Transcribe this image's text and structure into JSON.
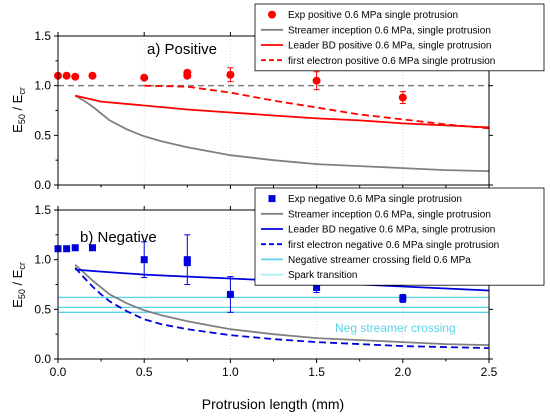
{
  "colors": {
    "red": "#ff0000",
    "blue": "#0000dd",
    "gray": "#808080",
    "cyan": "#5bd2e6",
    "refline": "#808080",
    "grid": "#d9d9d9"
  },
  "chart_data": [
    {
      "type": "line",
      "panel_label": "a) Positive",
      "ylabel_main": "E",
      "ylabel_sub1": "50",
      "ylabel_mid": " / E",
      "ylabel_sub2": "cr",
      "xlim": [
        0,
        2.5
      ],
      "ylim": [
        0,
        1.5
      ],
      "xticks": [
        "0.0",
        "0.5",
        "1.0",
        "1.5",
        "2.0",
        "2.5"
      ],
      "yticks": [
        "0.0",
        "0.5",
        "1.0",
        "1.5"
      ],
      "grid": "vertical-dotted",
      "legend_placement": "top-right",
      "reference_line": {
        "y": 1.0,
        "style": "dash",
        "color": "#808080"
      },
      "series": [
        {
          "name": "Exp positive 0.6 MPa single protrusion",
          "kind": "markers",
          "marker": "circle",
          "color": "#ff0000",
          "points": [
            {
              "x": 0.0,
              "y": 1.1,
              "err": 0.0
            },
            {
              "x": 0.05,
              "y": 1.1,
              "err": 0.0
            },
            {
              "x": 0.1,
              "y": 1.09,
              "err": 0.0
            },
            {
              "x": 0.2,
              "y": 1.1,
              "err": 0.0
            },
            {
              "x": 0.5,
              "y": 1.08,
              "err": 0.0
            },
            {
              "x": 0.75,
              "y": 1.13,
              "err": 0.02
            },
            {
              "x": 0.75,
              "y": 1.1,
              "err": 0.0
            },
            {
              "x": 1.0,
              "y": 1.11,
              "err": 0.07
            },
            {
              "x": 1.5,
              "y": 1.05,
              "err": 0.09
            },
            {
              "x": 2.0,
              "y": 0.88,
              "err": 0.06
            }
          ]
        },
        {
          "name": "Streamer inception 0.6 MPa, single protrusion",
          "kind": "line",
          "dash": "solid",
          "color": "#808080",
          "x": [
            0.1,
            0.15,
            0.2,
            0.25,
            0.3,
            0.4,
            0.5,
            0.6,
            0.75,
            1.0,
            1.25,
            1.5,
            1.75,
            2.0,
            2.25,
            2.5
          ],
          "y": [
            0.9,
            0.85,
            0.79,
            0.72,
            0.65,
            0.56,
            0.49,
            0.44,
            0.38,
            0.3,
            0.25,
            0.21,
            0.19,
            0.17,
            0.15,
            0.14
          ]
        },
        {
          "name": "Leader BD positive 0.6 MPa, single protrusion",
          "kind": "line",
          "dash": "solid",
          "color": "#ff0000",
          "x": [
            0.1,
            0.25,
            0.5,
            0.75,
            1.0,
            1.25,
            1.5,
            1.75,
            2.0,
            2.25,
            2.5
          ],
          "y": [
            0.9,
            0.84,
            0.8,
            0.76,
            0.73,
            0.7,
            0.67,
            0.65,
            0.62,
            0.6,
            0.58
          ]
        },
        {
          "name": "first electron positive 0.6 MPa single protrusion",
          "kind": "line",
          "dash": "dash",
          "color": "#ff0000",
          "x": [
            0.5,
            0.75,
            1.0,
            1.25,
            1.5,
            1.75,
            2.0,
            2.25,
            2.5
          ],
          "y": [
            1.0,
            0.99,
            0.93,
            0.85,
            0.78,
            0.71,
            0.66,
            0.61,
            0.57
          ]
        }
      ]
    },
    {
      "type": "line",
      "panel_label": "b) Negative",
      "ylabel_main": "E",
      "ylabel_sub1": "50",
      "ylabel_mid": " / E",
      "ylabel_sub2": "cr",
      "xlabel": "Protrusion length (mm)",
      "xlim": [
        0,
        2.5
      ],
      "ylim": [
        0,
        1.5
      ],
      "xticks": [
        "0.0",
        "0.5",
        "1.0",
        "1.5",
        "2.0",
        "2.5"
      ],
      "yticks": [
        "0.0",
        "0.5",
        "1.0",
        "1.5"
      ],
      "grid": "vertical-dotted",
      "legend_placement": "top-right",
      "band_label": "Neg streamer crossing",
      "series": [
        {
          "name": "Exp negative 0.6 MPa single protrusion",
          "kind": "markers",
          "marker": "square",
          "color": "#0000dd",
          "points": [
            {
              "x": 0.0,
              "y": 1.11,
              "err": 0.0
            },
            {
              "x": 0.05,
              "y": 1.11,
              "err": 0.0
            },
            {
              "x": 0.1,
              "y": 1.12,
              "err": 0.0
            },
            {
              "x": 0.2,
              "y": 1.12,
              "err": 0.0
            },
            {
              "x": 0.5,
              "y": 1.0,
              "err": 0.18
            },
            {
              "x": 0.75,
              "y": 1.0,
              "err": 0.25
            },
            {
              "x": 0.75,
              "y": 0.97,
              "err": 0.0
            },
            {
              "x": 1.0,
              "y": 0.65,
              "err": 0.18
            },
            {
              "x": 1.5,
              "y": 0.72,
              "err": 0.05
            },
            {
              "x": 2.0,
              "y": 0.61,
              "err": 0.04
            }
          ]
        },
        {
          "name": "Streamer inception 0.6 MPa, single protrusion",
          "kind": "line",
          "dash": "solid",
          "color": "#808080",
          "x": [
            0.1,
            0.15,
            0.2,
            0.25,
            0.3,
            0.4,
            0.5,
            0.6,
            0.75,
            1.0,
            1.25,
            1.5,
            1.75,
            2.0,
            2.25,
            2.5
          ],
          "y": [
            0.95,
            0.87,
            0.79,
            0.72,
            0.65,
            0.56,
            0.49,
            0.44,
            0.38,
            0.3,
            0.25,
            0.21,
            0.19,
            0.17,
            0.15,
            0.14
          ]
        },
        {
          "name": "Leader BD negative 0.6 MPa, single protrusion",
          "kind": "line",
          "dash": "solid",
          "color": "#0000dd",
          "x": [
            0.1,
            0.25,
            0.5,
            0.75,
            1.0,
            1.25,
            1.5,
            1.75,
            2.0,
            2.25,
            2.5
          ],
          "y": [
            0.9,
            0.88,
            0.85,
            0.83,
            0.81,
            0.79,
            0.77,
            0.75,
            0.73,
            0.71,
            0.69
          ]
        },
        {
          "name": "first electron negative  0.6 MPa single protrusion",
          "kind": "line",
          "dash": "dash",
          "color": "#0000dd",
          "x": [
            0.1,
            0.15,
            0.2,
            0.25,
            0.3,
            0.4,
            0.5,
            0.6,
            0.75,
            1.0,
            1.25,
            1.5,
            1.75,
            2.0,
            2.25,
            2.5
          ],
          "y": [
            0.92,
            0.82,
            0.73,
            0.65,
            0.58,
            0.48,
            0.4,
            0.35,
            0.3,
            0.24,
            0.2,
            0.17,
            0.15,
            0.13,
            0.12,
            0.11
          ]
        },
        {
          "name": "Negative streamer crossing field 0.6 MPa",
          "kind": "hlines",
          "color": "#5bd2e6",
          "y": [
            0.62,
            0.52,
            0.47
          ]
        },
        {
          "name": "Spark transition",
          "kind": "legend-only",
          "color": "#a6ecf7"
        }
      ]
    }
  ]
}
